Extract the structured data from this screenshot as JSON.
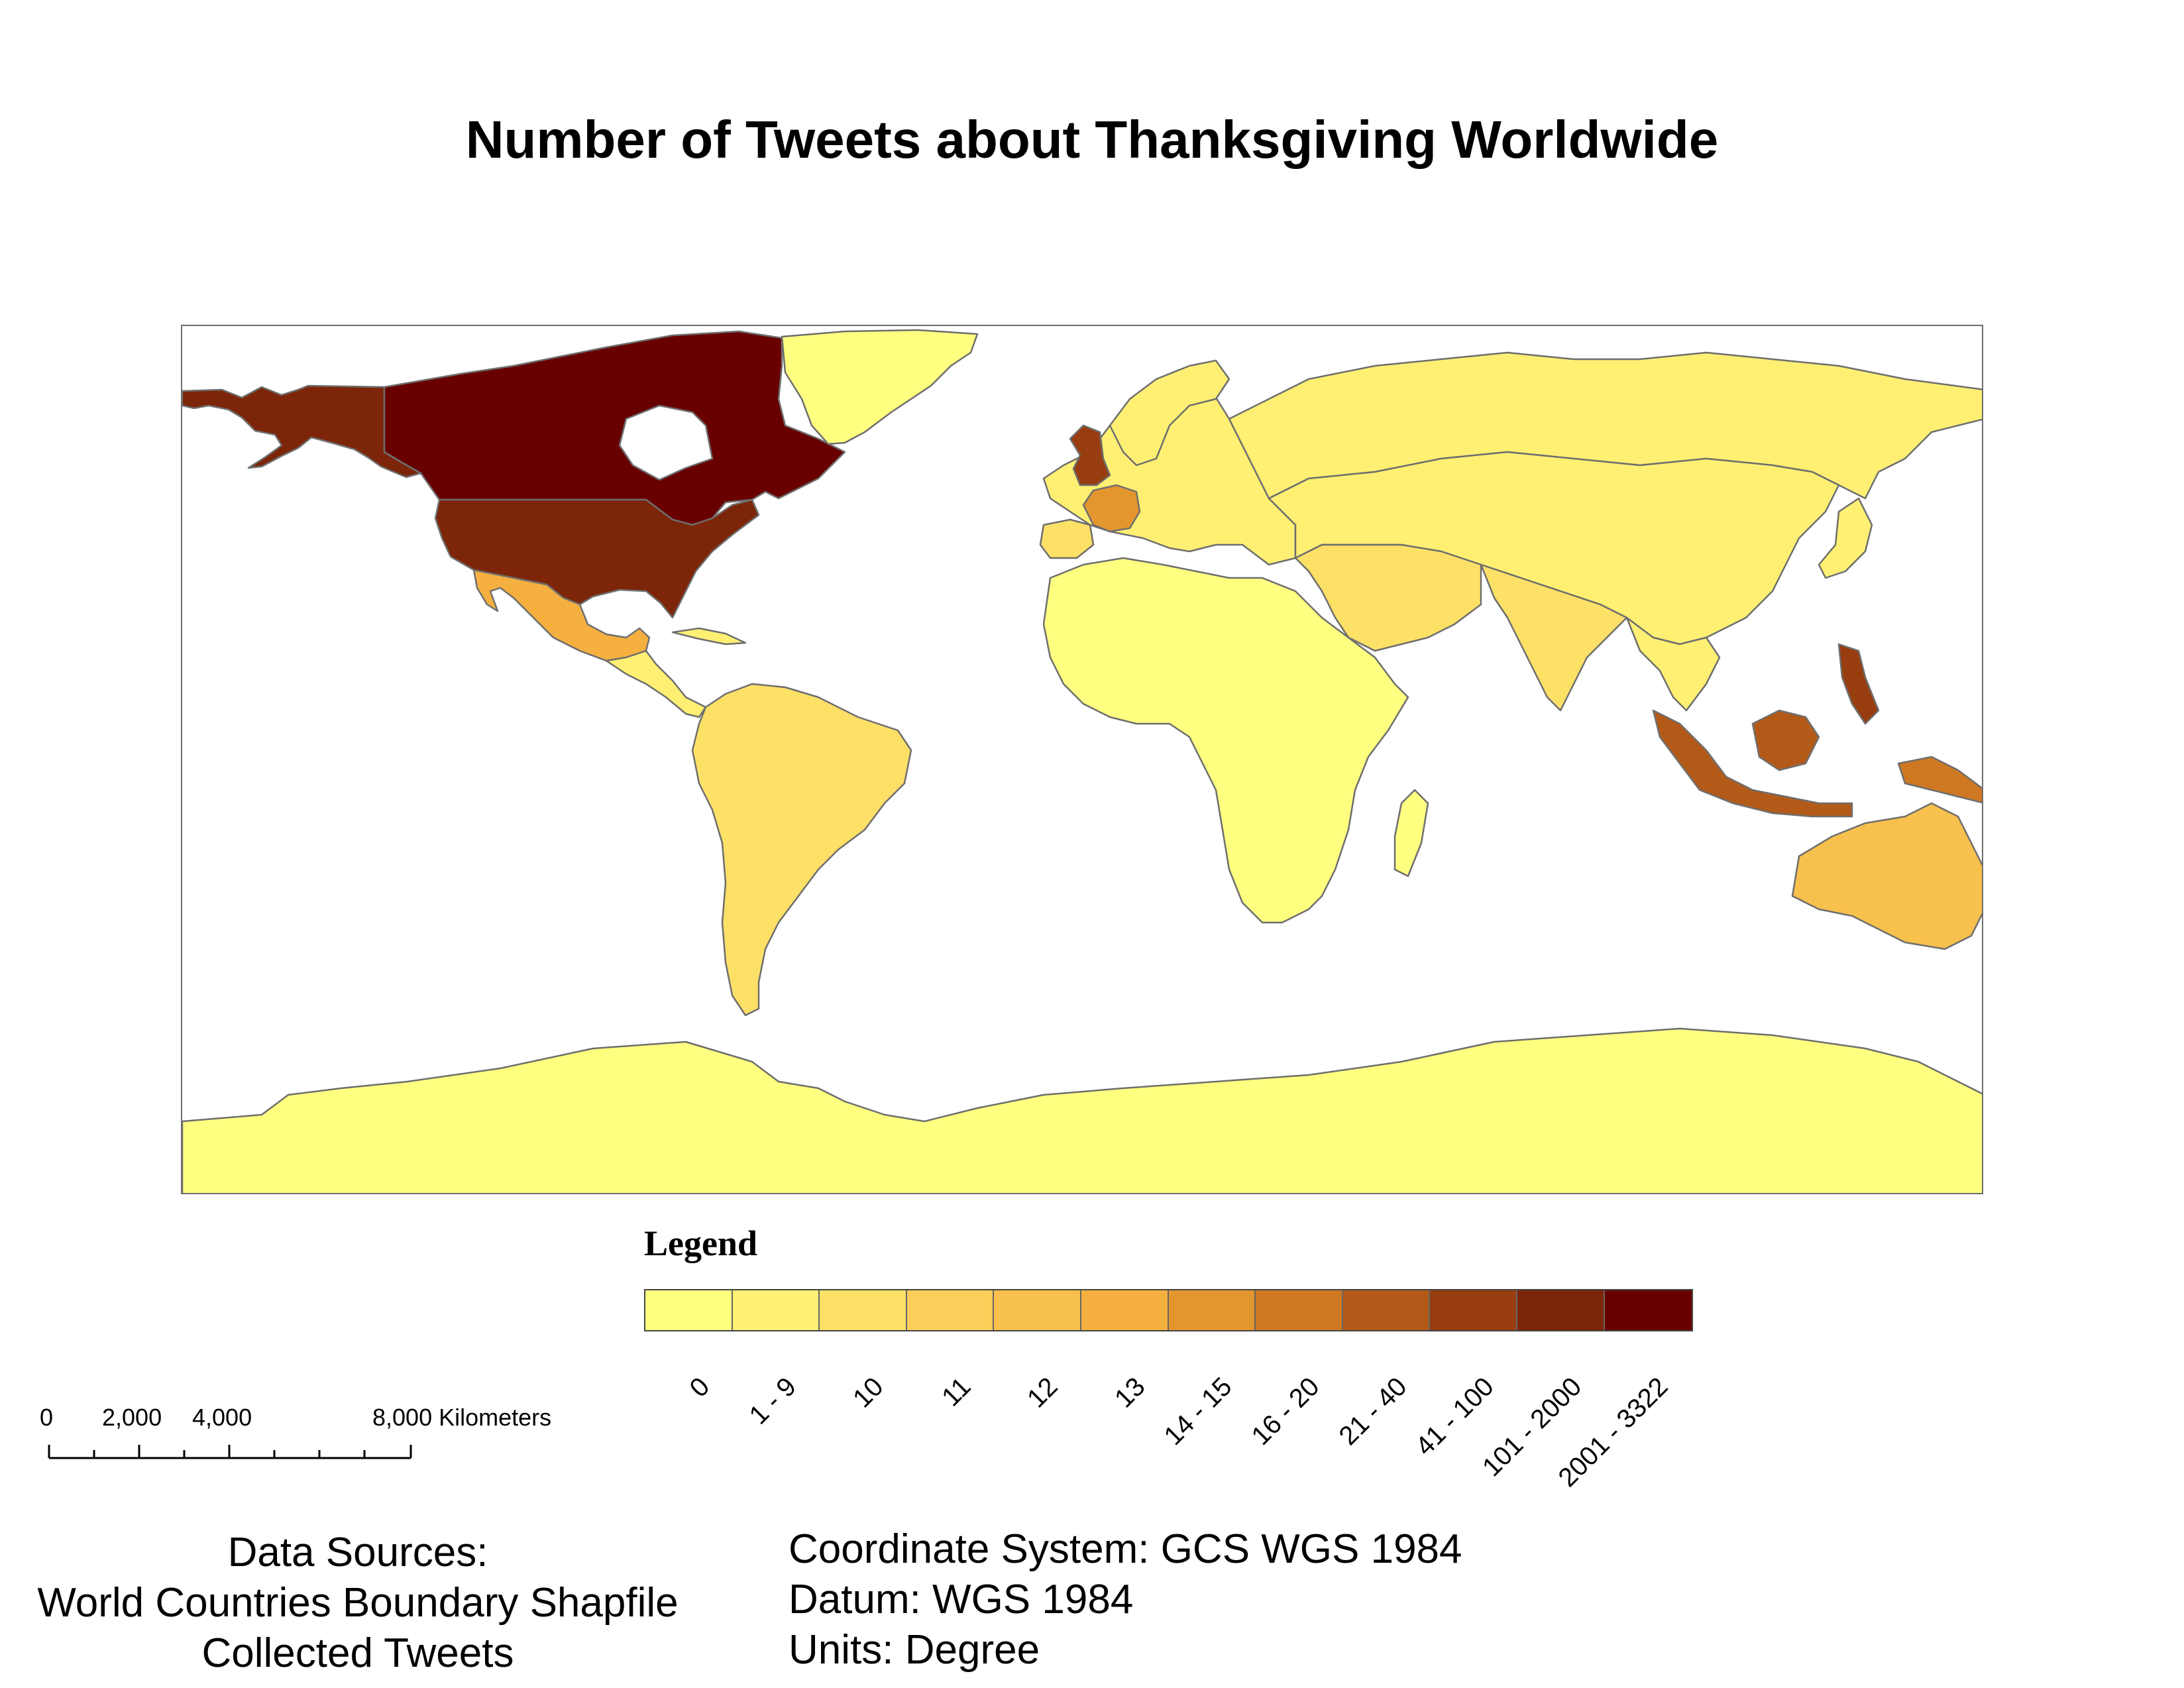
{
  "map": {
    "title": "Number of Tweets about Thanksgiving Worldwide",
    "legend_title": "Legend",
    "legend_classes": [
      {
        "label": "0",
        "color": "#ffff80"
      },
      {
        "label": "1 - 9",
        "color": "#fff073"
      },
      {
        "label": "10",
        "color": "#fde066"
      },
      {
        "label": "11",
        "color": "#fbd05a"
      },
      {
        "label": "12",
        "color": "#f8c04c"
      },
      {
        "label": "13",
        "color": "#f5b040"
      },
      {
        "label": "14 - 15",
        "color": "#e4962e"
      },
      {
        "label": "16 - 20",
        "color": "#cf7822"
      },
      {
        "label": "21 - 40",
        "color": "#b45a18"
      },
      {
        "label": "41 - 100",
        "color": "#983d10"
      },
      {
        "label": "101 - 2000",
        "color": "#7d2508"
      },
      {
        "label": "2001 - 3322",
        "color": "#690000"
      }
    ],
    "scale_bar": {
      "labels": [
        "0",
        "2,000",
        "4,000",
        "8,000 Kilometers"
      ]
    },
    "data_sources": {
      "heading": "Data Sources:",
      "line1": "World Countries Boundary Shapfile",
      "line2": "Collected Tweets"
    },
    "coordinate_info": {
      "system": "Coordinate System: GCS WGS 1984",
      "datum": "Datum: WGS 1984",
      "units": "Units: Degree"
    },
    "border_color": "#6e6e6e"
  }
}
